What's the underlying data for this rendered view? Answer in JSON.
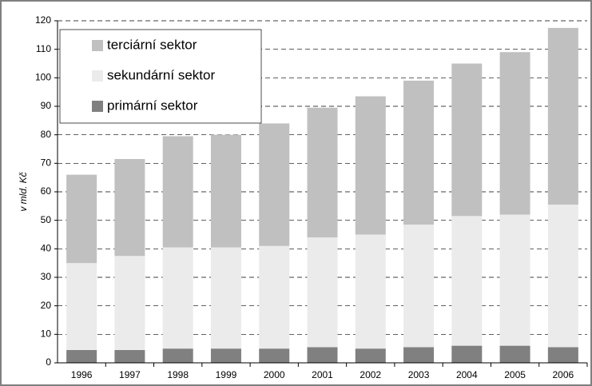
{
  "chart_data": {
    "type": "stacked-bar",
    "categories": [
      "1996",
      "1997",
      "1998",
      "1999",
      "2000",
      "2001",
      "2002",
      "2003",
      "2004",
      "2005",
      "2006"
    ],
    "series": [
      {
        "name": "primární sektor",
        "color": "#808080",
        "values": [
          4.5,
          4.5,
          5,
          5,
          5,
          5.5,
          5,
          5.5,
          6,
          6,
          5.5
        ]
      },
      {
        "name": "sekundární sektor",
        "color": "#ebebeb",
        "values": [
          30.5,
          33,
          35.5,
          35.5,
          36,
          38.5,
          40,
          43,
          45.5,
          46,
          50
        ]
      },
      {
        "name": "terciární sektor",
        "color": "#c0c0c0",
        "values": [
          31,
          34,
          39,
          39.5,
          43,
          45.5,
          48.5,
          50.5,
          53.5,
          57,
          62
        ]
      }
    ],
    "y_label": "v mld. Kč",
    "ylim": [
      0,
      120
    ],
    "yticks": [
      0,
      10,
      20,
      30,
      40,
      50,
      60,
      70,
      80,
      90,
      100,
      110,
      120
    ],
    "grid": true,
    "legend": "top-left"
  }
}
